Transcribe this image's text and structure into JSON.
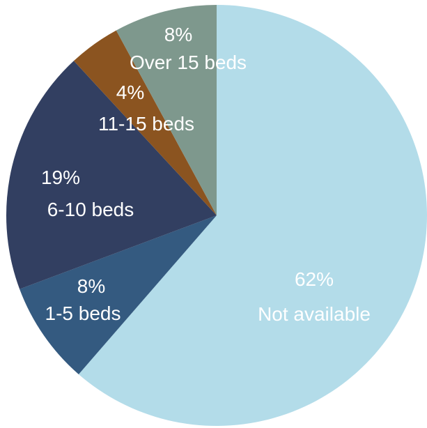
{
  "chart_data": {
    "type": "pie",
    "start_angle_deg": 0,
    "direction": "clockwise",
    "slices": [
      {
        "percent_label": "62%",
        "category": "Not available",
        "value": 62,
        "color": "#b3dce9"
      },
      {
        "percent_label": "8%",
        "category": "1-5 beds",
        "value": 8,
        "color": "#345a80"
      },
      {
        "percent_label": "19%",
        "category": "6-10 beds",
        "value": 19,
        "color": "#323f61"
      },
      {
        "percent_label": "4%",
        "category": "11-15 beds",
        "value": 4,
        "color": "#8b5420"
      },
      {
        "percent_label": "8%",
        "category": "Over 15 beds",
        "value": 8,
        "color": "#7e988d"
      }
    ]
  }
}
